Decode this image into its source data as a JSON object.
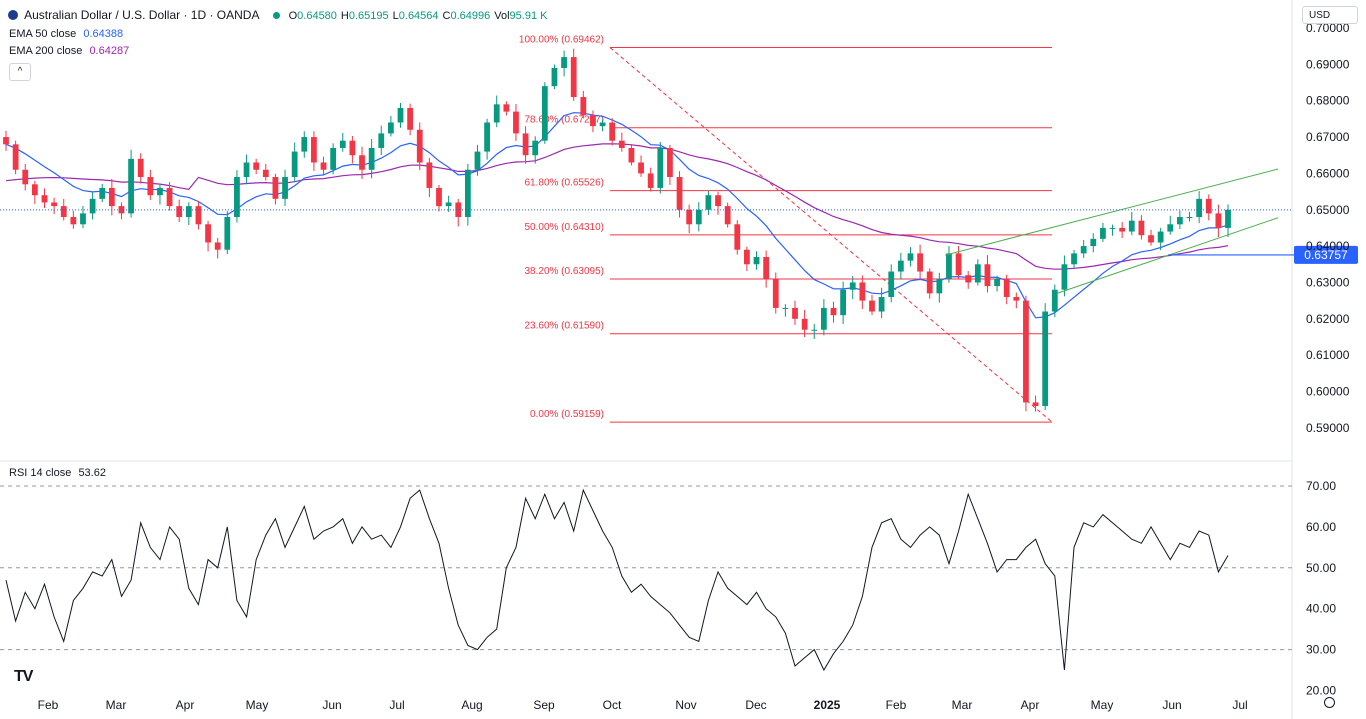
{
  "header": {
    "symbol": "Australian Dollar / U.S. Dollar · 1D · OANDA",
    "ohlc": [
      {
        "label": "O",
        "value": "0.64580"
      },
      {
        "label": "H",
        "value": "0.65195"
      },
      {
        "label": "L",
        "value": "0.64564"
      },
      {
        "label": "C",
        "value": "0.64996"
      },
      {
        "label": "Vol",
        "value": "95.91 K"
      }
    ],
    "ema50_label": "EMA 50 close",
    "ema50_value": "0.64388",
    "ema200_label": "EMA 200 close",
    "ema200_value": "0.64287",
    "currency": "USD",
    "collapse_glyph": "^"
  },
  "colors": {
    "up": "#089981",
    "down": "#f23645",
    "ema50": "#2962ff",
    "ema200": "#9c27b0",
    "fib": "#f23645",
    "channel": "#4caf50",
    "support": "#2962ff",
    "price": "#2962ff"
  },
  "chart_data": [
    {
      "type": "candlestick",
      "ylim": [
        0.585,
        0.7
      ],
      "y_ticks": [
        "0.70000",
        "0.69000",
        "0.68000",
        "0.67000",
        "0.66000",
        "0.65000",
        "0.64000",
        "0.63000",
        "0.62000",
        "0.61000",
        "0.60000",
        "0.59000"
      ],
      "x_ticks": [
        "Feb",
        "Mar",
        "Apr",
        "May",
        "Jun",
        "Jul",
        "Aug",
        "Sep",
        "Oct",
        "Nov",
        "Dec",
        "2025",
        "Feb",
        "Mar",
        "Apr",
        "May",
        "Jun",
        "Jul"
      ],
      "fibonacci": [
        {
          "label": "100.00% (0.69462)",
          "value": 0.69462
        },
        {
          "label": "78.60% (0.67257)",
          "value": 0.67257
        },
        {
          "label": "61.80% (0.65526)",
          "value": 0.65526
        },
        {
          "label": "50.00% (0.64310)",
          "value": 0.6431
        },
        {
          "label": "38.20% (0.63095)",
          "value": 0.63095
        },
        {
          "label": "23.60% (0.61590)",
          "value": 0.6159
        },
        {
          "label": "0.00% (0.59159)",
          "value": 0.59159
        }
      ],
      "support_level": {
        "label": "0.63757",
        "value": 0.63757
      },
      "current_price": 0.64996,
      "price_path": [
        0.668,
        0.661,
        0.657,
        0.654,
        0.652,
        0.651,
        0.648,
        0.646,
        0.649,
        0.653,
        0.656,
        0.651,
        0.649,
        0.664,
        0.659,
        0.654,
        0.656,
        0.651,
        0.648,
        0.651,
        0.646,
        0.641,
        0.639,
        0.648,
        0.659,
        0.663,
        0.661,
        0.659,
        0.653,
        0.659,
        0.666,
        0.67,
        0.663,
        0.661,
        0.667,
        0.669,
        0.665,
        0.661,
        0.667,
        0.671,
        0.674,
        0.678,
        0.672,
        0.663,
        0.656,
        0.651,
        0.652,
        0.648,
        0.661,
        0.666,
        0.674,
        0.679,
        0.677,
        0.671,
        0.665,
        0.669,
        0.684,
        0.689,
        0.692,
        0.681,
        0.676,
        0.673,
        0.674,
        0.669,
        0.667,
        0.663,
        0.66,
        0.656,
        0.667,
        0.659,
        0.65,
        0.646,
        0.65,
        0.654,
        0.651,
        0.646,
        0.639,
        0.635,
        0.637,
        0.631,
        0.623,
        0.623,
        0.62,
        0.617,
        0.617,
        0.623,
        0.621,
        0.628,
        0.63,
        0.625,
        0.622,
        0.626,
        0.633,
        0.636,
        0.638,
        0.633,
        0.627,
        0.631,
        0.638,
        0.632,
        0.63,
        0.635,
        0.629,
        0.631,
        0.626,
        0.625,
        0.597,
        0.596,
        0.622,
        0.628,
        0.635,
        0.638,
        0.64,
        0.642,
        0.645,
        0.645,
        0.644,
        0.647,
        0.643,
        0.641,
        0.644,
        0.646,
        0.648,
        0.648,
        0.653,
        0.649,
        0.645,
        0.65
      ]
    },
    {
      "type": "line",
      "name": "RSI 14 close",
      "title": "RSI 14 close",
      "value_label": "53.62",
      "ylim": [
        20,
        70
      ],
      "y_ticks": [
        "70.00",
        "60.00",
        "50.00",
        "40.00",
        "30.00",
        "20.00"
      ],
      "levels": [
        70,
        50,
        30
      ],
      "values": [
        47,
        37,
        44,
        40,
        46,
        38,
        32,
        42,
        45,
        49,
        48,
        52,
        43,
        47,
        61,
        55,
        52,
        60,
        57,
        45,
        41,
        52,
        50,
        60,
        42,
        38,
        52,
        58,
        62,
        55,
        60,
        65,
        57,
        59,
        60,
        62,
        56,
        60,
        57,
        58,
        55,
        60,
        67,
        69,
        62,
        56,
        45,
        36,
        31,
        30,
        33,
        35,
        50,
        55,
        67,
        62,
        68,
        62,
        66,
        59,
        69,
        64,
        59,
        55,
        48,
        44,
        46,
        43,
        41,
        39,
        36,
        33,
        32,
        42,
        49,
        45,
        43,
        41,
        44,
        40,
        38,
        34,
        26,
        28,
        30,
        25,
        29,
        32,
        36,
        43,
        55,
        61,
        62,
        57,
        55,
        58,
        60,
        58,
        51,
        59,
        68,
        62,
        56,
        49,
        52,
        52,
        55,
        57,
        51,
        48,
        25,
        55,
        61,
        60,
        63,
        61,
        59,
        57,
        56,
        60,
        56,
        52,
        56,
        55,
        59,
        58,
        49,
        53
      ]
    }
  ],
  "watermark": "TV"
}
